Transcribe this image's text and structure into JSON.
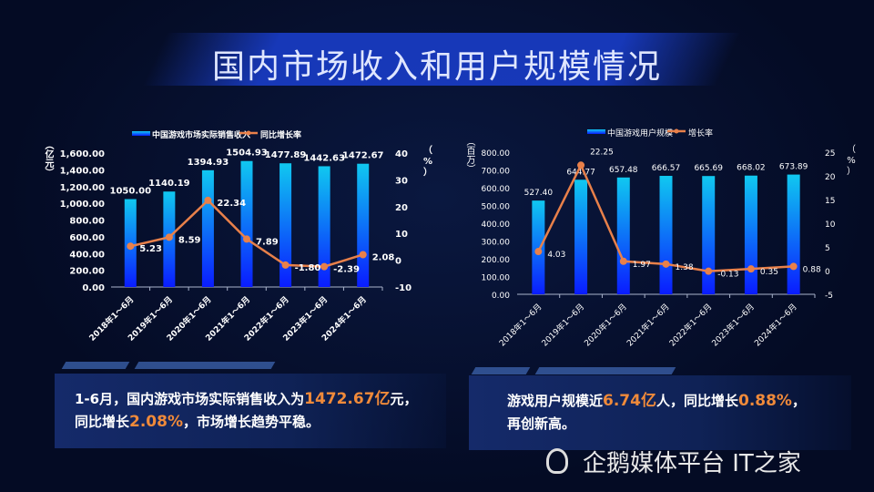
{
  "title": "国内市场收入和用户规模情况",
  "chart_data": [
    {
      "type": "bar+line",
      "title": "",
      "legend": [
        "中国游戏市场实际销售收入",
        "同比增长率"
      ],
      "legend_position": "top",
      "categories": [
        "2018年1～6月",
        "2019年1～6月",
        "2020年1～6月",
        "2021年1～6月",
        "2022年1～6月",
        "2023年1～6月",
        "2024年1～6月"
      ],
      "series": [
        {
          "name": "中国游戏市场实际销售收入",
          "type": "bar",
          "axis": "left",
          "values": [
            1050.0,
            1140.19,
            1394.93,
            1504.93,
            1477.89,
            1442.63,
            1472.67
          ],
          "labels": [
            "1050.00",
            "1140.19",
            "1394.93",
            "1504.93",
            "1477.89",
            "1442.63",
            "1472.67"
          ]
        },
        {
          "name": "同比增长率",
          "type": "line",
          "axis": "right",
          "values": [
            5.23,
            8.59,
            22.34,
            7.89,
            -1.8,
            -2.39,
            2.08
          ],
          "labels": [
            "5.23",
            "8.59",
            "22.34",
            "7.89",
            "-1.80",
            "-2.39",
            "2.08"
          ]
        }
      ],
      "ylabel": "（亿元）",
      "ylim": [
        0,
        1600
      ],
      "yticks": [
        "0.00",
        "200.00",
        "400.00",
        "600.00",
        "800.00",
        "1,000.00",
        "1,200.00",
        "1,400.00",
        "1,600.00"
      ],
      "y2label": "（%）",
      "y2lim": [
        -10,
        40
      ],
      "y2ticks": [
        "-10",
        "0",
        "10",
        "20",
        "30",
        "40"
      ]
    },
    {
      "type": "bar+line",
      "title": "",
      "legend": [
        "中国游戏用户规模",
        "增长率"
      ],
      "legend_position": "top",
      "categories": [
        "2018年1～6月",
        "2019年1～6月",
        "2020年1～6月",
        "2021年1～6月",
        "2022年1～6月",
        "2023年1～6月",
        "2024年1～6月"
      ],
      "series": [
        {
          "name": "中国游戏用户规模",
          "type": "bar",
          "axis": "left",
          "values": [
            527.4,
            644.77,
            657.48,
            666.57,
            665.69,
            668.02,
            673.89
          ],
          "labels": [
            "527.40",
            "644.77",
            "657.48",
            "666.57",
            "665.69",
            "668.02",
            "673.89"
          ]
        },
        {
          "name": "增长率",
          "type": "line",
          "axis": "right",
          "values": [
            4.03,
            22.25,
            1.97,
            1.38,
            -0.13,
            0.35,
            0.88
          ],
          "labels": [
            "4.03",
            "22.25",
            "1.97",
            "1.38",
            "-0.13",
            "0.35",
            "0.88"
          ]
        }
      ],
      "ylabel": "（百万）",
      "ylim": [
        0,
        800
      ],
      "yticks": [
        "0.00",
        "100.00",
        "200.00",
        "300.00",
        "400.00",
        "500.00",
        "600.00",
        "700.00",
        "800.00"
      ],
      "y2label": "（%）",
      "y2lim": [
        -5,
        25
      ],
      "y2ticks": [
        "-5",
        "0",
        "5",
        "10",
        "15",
        "20",
        "25"
      ]
    }
  ],
  "summary_left": {
    "p1": "1-6月，国内游戏市场实际销售收入为",
    "h1": "1472.67亿",
    "p2": "元，",
    "p3": "同比增长",
    "h2": "2.08%",
    "p4": "，市场增长趋势平稳。"
  },
  "summary_right": {
    "p1": "游戏用户规模近",
    "h1": "6.74亿",
    "p2": "人，同比增长",
    "h2": "0.88%",
    "p3": "，",
    "p4": "再创新高。"
  },
  "watermark": "企鹅媒体平台 IT之家",
  "colors": {
    "bar_top": "#10c8f0",
    "bar_bottom": "#0a1cff",
    "line": "#e8804a",
    "highlight": "#f08a3a"
  }
}
